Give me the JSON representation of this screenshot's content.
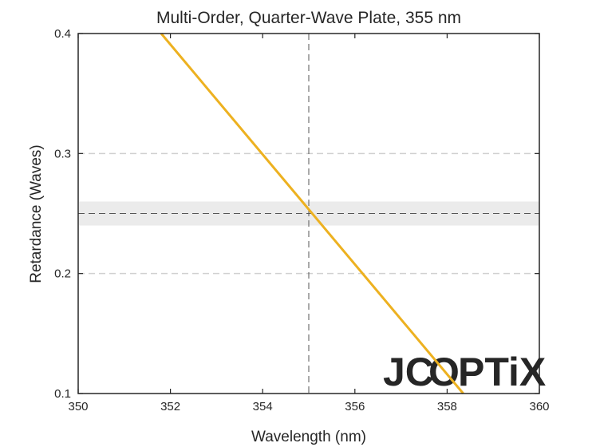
{
  "chart_data": {
    "type": "line",
    "title": "Multi-Order, Quarter-Wave Plate, 355 nm",
    "xlabel": "Wavelength (nm)",
    "ylabel": "Retardance (Waves)",
    "xlim": [
      350,
      360
    ],
    "ylim": [
      0.1,
      0.4
    ],
    "xticks": [
      350,
      352,
      354,
      356,
      358,
      360
    ],
    "yticks": [
      0.1,
      0.2,
      0.3,
      0.4
    ],
    "ytick_labels": [
      "0.1",
      "0.2",
      "0.3",
      "0.4"
    ],
    "grid": "horizontal-dashed",
    "series": [
      {
        "color": "#EDB120",
        "x": [
          351.8,
          358.35
        ],
        "y": [
          0.4,
          0.1
        ]
      }
    ],
    "reference_lines": {
      "x": 355,
      "y": 0.25,
      "tolerance_band": [
        0.24,
        0.26
      ]
    }
  },
  "watermark": {
    "parts": [
      "JC",
      "O",
      "PTiX"
    ],
    "color_main": "#c8c8c8",
    "color_accent": "#f5c9a0"
  }
}
